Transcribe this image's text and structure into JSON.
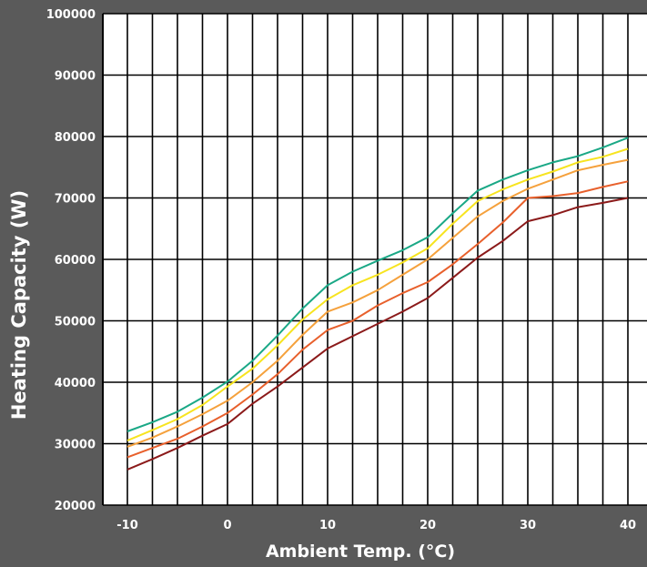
{
  "chart_data": {
    "type": "line",
    "title": "",
    "xlabel": "Ambient Temp. (°C)",
    "ylabel": "Heating Capacity (W)",
    "xlim": [
      -10,
      40
    ],
    "ylim": [
      20000,
      100000
    ],
    "x_ticks": [
      -10,
      0,
      10,
      20,
      30,
      40
    ],
    "x_tick_labels": [
      "-10",
      "0",
      "10",
      "20",
      "30",
      "40"
    ],
    "y_ticks": [
      20000,
      30000,
      40000,
      50000,
      60000,
      70000,
      80000,
      90000,
      100000
    ],
    "y_tick_labels": [
      "20000",
      "30000",
      "40000",
      "50000",
      "60000",
      "70000",
      "80000",
      "90000",
      "100000"
    ],
    "grid": true,
    "legend": "none",
    "x": [
      -10,
      -7.5,
      -5,
      -2.5,
      0,
      2.5,
      5,
      7.5,
      10,
      12.5,
      15,
      17.5,
      20,
      22.5,
      25,
      27.5,
      30,
      32.5,
      35,
      37.5,
      40
    ],
    "series": [
      {
        "color": "#1aa886",
        "values": [
          32000,
          33500,
          35200,
          37500,
          40100,
          43500,
          47600,
          52000,
          55800,
          58000,
          59800,
          61500,
          63600,
          67500,
          71200,
          73000,
          74500,
          75800,
          76800,
          78200,
          79800
        ]
      },
      {
        "color": "#f7e41f",
        "values": [
          30500,
          32200,
          34000,
          36300,
          39300,
          42200,
          46000,
          50200,
          53500,
          55800,
          57500,
          59500,
          61800,
          65800,
          69500,
          71400,
          73000,
          74300,
          75800,
          76700,
          78000
        ]
      },
      {
        "color": "#f5a13c",
        "values": [
          29500,
          31000,
          32800,
          34800,
          37000,
          40000,
          43500,
          47700,
          51500,
          53000,
          55000,
          57500,
          60000,
          63500,
          67000,
          69500,
          71500,
          73000,
          74500,
          75400,
          76200
        ]
      },
      {
        "color": "#e8602c",
        "values": [
          27800,
          29300,
          30800,
          32800,
          35000,
          38000,
          41300,
          45300,
          48500,
          50000,
          52500,
          54500,
          56300,
          59200,
          62500,
          66000,
          70000,
          70300,
          70800,
          71800,
          72700
        ]
      },
      {
        "color": "#8b1a1a",
        "values": [
          25800,
          27500,
          29300,
          31300,
          33200,
          36500,
          39300,
          42400,
          45500,
          47500,
          49500,
          51500,
          53700,
          57000,
          60300,
          63000,
          66200,
          67200,
          68500,
          69200,
          70000
        ]
      }
    ]
  }
}
